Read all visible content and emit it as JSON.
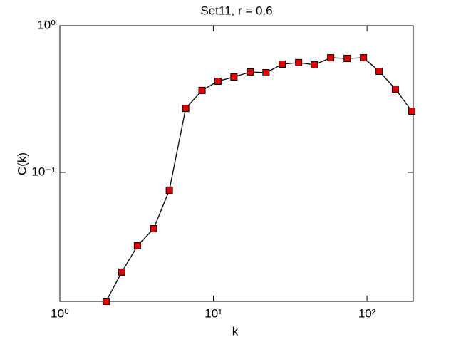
{
  "chart_data": {
    "type": "line",
    "title": "Set11, r = 0.6",
    "xlabel": "k",
    "ylabel": "C(k)",
    "xscale": "log",
    "yscale": "log",
    "xlim": [
      1,
      200
    ],
    "ylim": [
      0.0132,
      1
    ],
    "xticks": [
      {
        "value": 1,
        "label": "10⁰"
      },
      {
        "value": 10,
        "label": "10¹"
      },
      {
        "value": 100,
        "label": "10²"
      }
    ],
    "yticks": [
      {
        "value": 0.1,
        "label": "10⁻¹"
      },
      {
        "value": 1,
        "label": "10⁰"
      }
    ],
    "series": [
      {
        "color": "#e00000",
        "line_color": "#000000",
        "x": [
          2,
          2.53,
          3.2,
          4.08,
          5.16,
          6.6,
          8.43,
          10.7,
          13.6,
          17.4,
          22.0,
          28.1,
          35.9,
          45.4,
          58.0,
          74.2,
          94.8,
          120,
          153,
          196
        ],
        "values": [
          0.0132,
          0.0209,
          0.0316,
          0.0413,
          0.0756,
          0.273,
          0.362,
          0.418,
          0.447,
          0.484,
          0.478,
          0.547,
          0.56,
          0.541,
          0.604,
          0.598,
          0.604,
          0.489,
          0.37,
          0.261
        ]
      }
    ]
  }
}
